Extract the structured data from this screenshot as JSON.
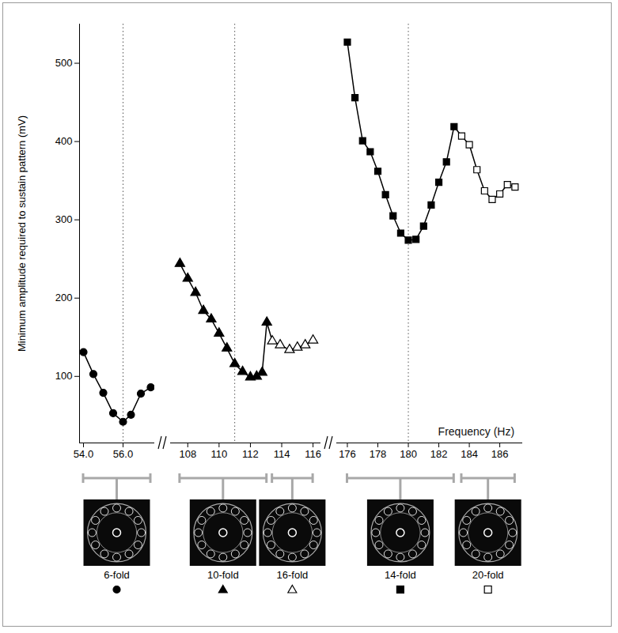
{
  "chart_data": {
    "type": "line",
    "y_label": "Minimum amplitude required to sustain pattern (mV)",
    "x_label": "Frequency (Hz)",
    "ylim": [
      15,
      550
    ],
    "yticks": [
      100,
      200,
      300,
      400,
      500
    ],
    "panels": [
      {
        "xlim": [
          53.8,
          57.6
        ],
        "xticks": [
          54,
          56
        ],
        "reference_x": 56,
        "series": [
          {
            "name": "6-fold",
            "color": "#000000",
            "marker": "circle",
            "x": [
              54,
              54.5,
              55,
              55.5,
              56,
              56.4,
              56.9,
              57.4
            ],
            "values": [
              131,
              103,
              79,
              53,
              42,
              51,
              78,
              86
            ]
          }
        ]
      },
      {
        "xlim": [
          106.9,
          116.5
        ],
        "xticks": [
          108,
          110,
          112,
          114,
          116
        ],
        "reference_x": 111,
        "series": [
          {
            "name": "10-fold",
            "color": "#000000",
            "marker": "triangle",
            "x": [
              107.5,
              108,
              108.5,
              109,
              109.5,
              110,
              110.5,
              111,
              111.5,
              112,
              112.4,
              112.75,
              113.05
            ],
            "values": [
              244,
              225,
              207,
              184,
              173,
              155,
              136,
              116,
              106,
              99,
              100,
              105,
              169
            ]
          },
          {
            "name": "16-fold",
            "color": "#000000",
            "marker": "open-triangle",
            "x": [
              113.4,
              113.9,
              114.5,
              115,
              115.5,
              116
            ],
            "values": [
              145,
              140,
              134,
              137,
              140,
              146
            ]
          }
        ]
      },
      {
        "xlim": [
          175.3,
          187.5
        ],
        "xticks": [
          176,
          178,
          180,
          182,
          184,
          186
        ],
        "reference_x": 180,
        "series": [
          {
            "name": "14-fold",
            "color": "#000000",
            "marker": "square",
            "x": [
              176,
              176.5,
              177,
              177.5,
              178,
              178.5,
              179,
              179.5,
              180,
              180.5,
              181,
              181.5,
              182,
              182.5,
              183
            ],
            "values": [
              527,
              456,
              401,
              387,
              362,
              332,
              305,
              283,
              274,
              275,
              292,
              319,
              348,
              374,
              419
            ]
          },
          {
            "name": "20-fold",
            "color": "#000000",
            "marker": "open-square",
            "x": [
              183.5,
              184,
              184.5,
              185,
              185.5,
              186,
              186.5,
              187
            ],
            "values": [
              407,
              396,
              364,
              337,
              326,
              333,
              345,
              342
            ]
          }
        ]
      }
    ]
  }
}
